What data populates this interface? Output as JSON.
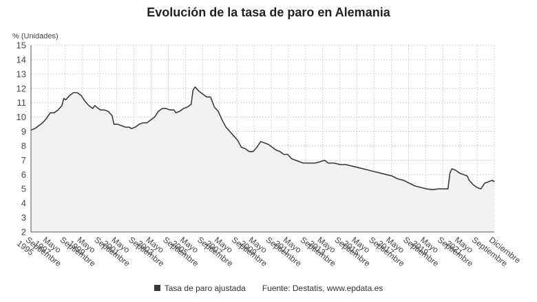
{
  "chart_data": {
    "type": "area",
    "title": "Evolución de la tasa de paro en Alemania",
    "ylabel": "% (Unidades)",
    "xlabel": "",
    "ylim": [
      2,
      15
    ],
    "yticks": [
      "2",
      "3",
      "4",
      "5",
      "6",
      "7",
      "8",
      "9",
      "10",
      "11",
      "12",
      "13",
      "14",
      "15"
    ],
    "grid": true,
    "x_tick_labels": [
      "Septiembre 1995",
      "Mayo 1997",
      "Septiembre",
      "Mayo 1999",
      "Septiembre",
      "Mayo 2001",
      "Septiembre",
      "Mayo 2003",
      "Septiembre",
      "Mayo 2005",
      "Septiembre",
      "Mayo 2007",
      "Septiembre",
      "Mayo 2009",
      "Septiembre",
      "Mayo 2011",
      "Septiembre",
      "Mayo 2013",
      "Septiembre",
      "Mayo 2015",
      "Septiembre",
      "Mayo 2017",
      "Septiembre",
      "Mayo 2019",
      "Septiembre",
      "Mayo 2021",
      "Septiembre",
      "Diciembre"
    ],
    "series": [
      {
        "name": "Tasa de paro ajustada",
        "color": "#3a3a3a",
        "fill": "#f1f1f3",
        "points": [
          [
            "1995-09",
            9.1
          ],
          [
            "1995-11",
            9.2
          ],
          [
            "1996-01",
            9.4
          ],
          [
            "1996-03",
            9.6
          ],
          [
            "1996-05",
            9.9
          ],
          [
            "1996-07",
            10.3
          ],
          [
            "1996-09",
            10.3
          ],
          [
            "1996-11",
            10.5
          ],
          [
            "1997-01",
            10.8
          ],
          [
            "1997-02",
            11.3
          ],
          [
            "1997-03",
            11.2
          ],
          [
            "1997-05",
            11.5
          ],
          [
            "1997-07",
            11.7
          ],
          [
            "1997-09",
            11.7
          ],
          [
            "1997-11",
            11.5
          ],
          [
            "1998-01",
            11.1
          ],
          [
            "1998-03",
            10.8
          ],
          [
            "1998-05",
            10.6
          ],
          [
            "1998-06",
            10.8
          ],
          [
            "1998-07",
            10.7
          ],
          [
            "1998-09",
            10.5
          ],
          [
            "1998-11",
            10.5
          ],
          [
            "1999-01",
            10.4
          ],
          [
            "1999-03",
            10.1
          ],
          [
            "1999-04",
            9.5
          ],
          [
            "1999-06",
            9.5
          ],
          [
            "1999-08",
            9.4
          ],
          [
            "1999-10",
            9.3
          ],
          [
            "1999-12",
            9.3
          ],
          [
            "2000-01",
            9.2
          ],
          [
            "2000-03",
            9.3
          ],
          [
            "2000-05",
            9.5
          ],
          [
            "2000-07",
            9.6
          ],
          [
            "2000-09",
            9.6
          ],
          [
            "2000-11",
            9.8
          ],
          [
            "2001-01",
            10.0
          ],
          [
            "2001-03",
            10.4
          ],
          [
            "2001-05",
            10.6
          ],
          [
            "2001-07",
            10.6
          ],
          [
            "2001-09",
            10.5
          ],
          [
            "2001-11",
            10.5
          ],
          [
            "2001-12",
            10.3
          ],
          [
            "2002-02",
            10.4
          ],
          [
            "2002-04",
            10.6
          ],
          [
            "2002-06",
            10.7
          ],
          [
            "2002-08",
            10.9
          ],
          [
            "2002-09",
            11.9
          ],
          [
            "2002-10",
            12.1
          ],
          [
            "2002-12",
            11.8
          ],
          [
            "2003-02",
            11.6
          ],
          [
            "2003-04",
            11.4
          ],
          [
            "2003-06",
            11.4
          ],
          [
            "2003-08",
            10.7
          ],
          [
            "2003-10",
            10.4
          ],
          [
            "2003-12",
            9.8
          ],
          [
            "2004-02",
            9.3
          ],
          [
            "2004-04",
            9.0
          ],
          [
            "2004-06",
            8.7
          ],
          [
            "2004-08",
            8.4
          ],
          [
            "2004-10",
            7.9
          ],
          [
            "2004-12",
            7.8
          ],
          [
            "2005-02",
            7.6
          ],
          [
            "2005-04",
            7.6
          ],
          [
            "2005-06",
            7.9
          ],
          [
            "2005-08",
            8.3
          ],
          [
            "2005-10",
            8.2
          ],
          [
            "2005-12",
            8.1
          ],
          [
            "2006-02",
            7.9
          ],
          [
            "2006-04",
            7.7
          ],
          [
            "2006-06",
            7.6
          ],
          [
            "2006-08",
            7.4
          ],
          [
            "2006-10",
            7.4
          ],
          [
            "2006-12",
            7.1
          ],
          [
            "2007-02",
            7.0
          ],
          [
            "2007-04",
            6.9
          ],
          [
            "2007-06",
            6.8
          ],
          [
            "2007-09",
            6.8
          ],
          [
            "2007-12",
            6.8
          ],
          [
            "2008-03",
            6.9
          ],
          [
            "2008-05",
            7.0
          ],
          [
            "2008-07",
            6.8
          ],
          [
            "2008-10",
            6.8
          ],
          [
            "2009-01",
            6.7
          ],
          [
            "2009-04",
            6.7
          ],
          [
            "2009-07",
            6.6
          ],
          [
            "2009-10",
            6.5
          ],
          [
            "2010-01",
            6.4
          ],
          [
            "2010-04",
            6.3
          ],
          [
            "2010-07",
            6.2
          ],
          [
            "2010-10",
            6.1
          ],
          [
            "2011-01",
            6.0
          ],
          [
            "2011-04",
            5.9
          ],
          [
            "2011-07",
            5.7
          ],
          [
            "2011-10",
            5.6
          ],
          [
            "2012-01",
            5.4
          ],
          [
            "2012-04",
            5.2
          ],
          [
            "2012-07",
            5.1
          ],
          [
            "2012-10",
            5.0
          ],
          [
            "2013-01",
            4.95
          ],
          [
            "2013-04",
            5.0
          ],
          [
            "2013-07",
            5.0
          ],
          [
            "2013-09",
            5.0
          ],
          [
            "2013-10",
            6.1
          ],
          [
            "2013-11",
            6.4
          ],
          [
            "2014-01",
            6.3
          ],
          [
            "2014-03",
            6.1
          ],
          [
            "2014-05",
            6.0
          ],
          [
            "2014-07",
            5.9
          ],
          [
            "2014-08",
            5.6
          ],
          [
            "2014-10",
            5.3
          ],
          [
            "2014-12",
            5.1
          ],
          [
            "2015-02",
            5.0
          ],
          [
            "2015-04",
            5.4
          ],
          [
            "2015-06",
            5.5
          ],
          [
            "2015-08",
            5.6
          ],
          [
            "2015-09",
            5.5
          ]
        ]
      }
    ]
  },
  "footer": {
    "legend_label": "Tasa de paro ajustada",
    "source": "Fuente: Destatis, www.epdata.es"
  }
}
